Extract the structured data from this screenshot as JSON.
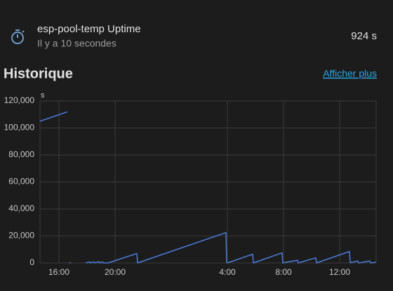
{
  "header": {
    "title": "esp-pool-temp Uptime",
    "subtitle": "Il y a 10 secondes",
    "value": "924 s"
  },
  "section": {
    "title": "Historique",
    "link": "Afficher plus"
  },
  "chart_data": {
    "type": "line",
    "y_label": "s",
    "x": [
      14.65,
      16.6,
      16.7,
      16.75,
      16.85,
      17.5,
      17.9,
      18.2,
      18.25,
      18.5,
      18.55,
      18.85,
      18.9,
      19.1,
      19.15,
      19.5,
      21.55,
      21.6,
      27.9,
      27.95,
      28.0,
      29.8,
      29.85,
      31.9,
      31.95,
      33.0,
      33.05,
      34.3,
      34.35,
      36.7,
      36.75,
      37.3,
      37.35,
      38.15,
      38.2,
      38.6
    ],
    "series": [
      {
        "name": "esp-pool-temp Uptime",
        "color": "#4c7bd6",
        "values": [
          105000,
          112000,
          null,
          0,
          300,
          null,
          0,
          800,
          0,
          800,
          0,
          1000,
          0,
          800,
          0,
          0,
          7000,
          0,
          22500,
          600,
          0,
          6500,
          0,
          7500,
          0,
          2000,
          0,
          3800,
          0,
          8500,
          200,
          1500,
          0,
          1500,
          0,
          500
        ]
      }
    ],
    "xlim": [
      14.65,
      38.6
    ],
    "xticks": [
      {
        "value": 16,
        "label": "16:00"
      },
      {
        "value": 20,
        "label": "20:00"
      },
      {
        "value": 28,
        "label": "4:00"
      },
      {
        "value": 32,
        "label": "8:00"
      },
      {
        "value": 36,
        "label": "12:00"
      }
    ],
    "ylim": [
      0,
      120000
    ],
    "yticks": [
      0,
      {
        "value": 20000,
        "label": "20,000"
      },
      {
        "value": 40000,
        "label": "40,000"
      },
      {
        "value": 60000,
        "label": "60,000"
      },
      {
        "value": 80000,
        "label": "80,000"
      },
      {
        "value": 100000,
        "label": "100,000"
      },
      {
        "value": 120000,
        "label": "120,000"
      }
    ],
    "grid": true
  }
}
